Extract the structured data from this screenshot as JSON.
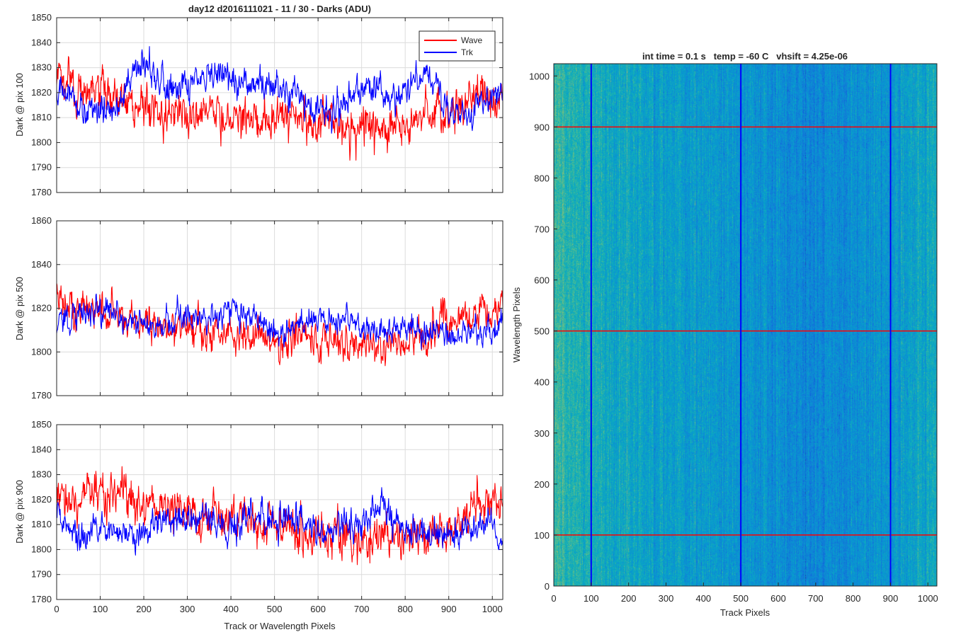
{
  "figure_title": "day12 d2016111021 - 11 / 30 - Darks (ADU)",
  "colors": {
    "wave": "#ff0000",
    "trk": "#0000ff",
    "grid": "#dcdcdc",
    "axis": "#262626"
  },
  "chart_data": [
    {
      "type": "line",
      "title": "day12 d2016111021 - 11 / 30 - Darks (ADU)",
      "xlabel": "",
      "ylabel": "Dark @ pix 100",
      "xlim": [
        0,
        1024
      ],
      "ylim": [
        1780,
        1850
      ],
      "xticks": [
        0,
        100,
        200,
        300,
        400,
        500,
        600,
        700,
        800,
        900,
        1000
      ],
      "xticks_labeled": false,
      "yticks": [
        1780,
        1790,
        1800,
        1810,
        1820,
        1830,
        1840,
        1850
      ],
      "grid": true,
      "legend": "top-right",
      "series": [
        {
          "name": "Wave",
          "color": "#ff0000",
          "x": [
            0,
            50,
            100,
            150,
            200,
            250,
            300,
            350,
            400,
            450,
            500,
            550,
            600,
            650,
            700,
            750,
            800,
            850,
            900,
            950,
            1000,
            1024
          ],
          "mean": [
            1825,
            1822,
            1819,
            1817,
            1815,
            1813,
            1812,
            1812,
            1811,
            1810,
            1810,
            1809,
            1808,
            1806,
            1806,
            1806,
            1808,
            1810,
            1812,
            1815,
            1818,
            1820
          ],
          "noise": 8
        },
        {
          "name": "Trk",
          "color": "#0000ff",
          "x": [
            0,
            50,
            100,
            150,
            200,
            250,
            300,
            350,
            400,
            450,
            500,
            550,
            600,
            650,
            700,
            750,
            800,
            850,
            900,
            950,
            1000,
            1024
          ],
          "mean": [
            1822,
            1815,
            1812,
            1818,
            1832,
            1822,
            1822,
            1826,
            1825,
            1824,
            1822,
            1818,
            1812,
            1815,
            1822,
            1818,
            1820,
            1828,
            1812,
            1812,
            1818,
            1820
          ],
          "noise": 6
        }
      ]
    },
    {
      "type": "line",
      "title": "",
      "xlabel": "",
      "ylabel": "Dark @ pix 500",
      "xlim": [
        0,
        1024
      ],
      "ylim": [
        1780,
        1860
      ],
      "xticks": [
        0,
        100,
        200,
        300,
        400,
        500,
        600,
        700,
        800,
        900,
        1000
      ],
      "xticks_labeled": false,
      "yticks": [
        1780,
        1800,
        1820,
        1840,
        1860
      ],
      "grid": true,
      "series": [
        {
          "name": "Wave",
          "color": "#ff0000",
          "x": [
            0,
            50,
            100,
            150,
            200,
            250,
            300,
            350,
            400,
            450,
            500,
            550,
            600,
            650,
            700,
            750,
            800,
            850,
            900,
            950,
            1000,
            1024
          ],
          "mean": [
            1822,
            1820,
            1820,
            1816,
            1812,
            1812,
            1812,
            1810,
            1810,
            1808,
            1806,
            1806,
            1805,
            1805,
            1804,
            1803,
            1804,
            1806,
            1816,
            1814,
            1818,
            1820
          ],
          "noise": 8
        },
        {
          "name": "Trk",
          "color": "#0000ff",
          "x": [
            0,
            50,
            100,
            150,
            200,
            250,
            300,
            350,
            400,
            450,
            500,
            550,
            600,
            650,
            700,
            750,
            800,
            850,
            900,
            950,
            1000,
            1024
          ],
          "mean": [
            1814,
            1818,
            1820,
            1816,
            1810,
            1812,
            1816,
            1816,
            1822,
            1818,
            1810,
            1812,
            1816,
            1814,
            1812,
            1810,
            1810,
            1810,
            1808,
            1806,
            1810,
            1814
          ],
          "noise": 6
        }
      ]
    },
    {
      "type": "line",
      "title": "",
      "xlabel": "Track or Wavelength Pixels",
      "ylabel": "Dark @ pix 900",
      "xlim": [
        0,
        1024
      ],
      "ylim": [
        1780,
        1850
      ],
      "xticks": [
        0,
        100,
        200,
        300,
        400,
        500,
        600,
        700,
        800,
        900,
        1000
      ],
      "xticks_labeled": true,
      "yticks": [
        1780,
        1790,
        1800,
        1810,
        1820,
        1830,
        1840,
        1850
      ],
      "grid": true,
      "series": [
        {
          "name": "Wave",
          "color": "#ff0000",
          "x": [
            0,
            50,
            100,
            150,
            200,
            250,
            300,
            350,
            400,
            450,
            500,
            550,
            600,
            650,
            700,
            750,
            800,
            850,
            900,
            950,
            1000,
            1024
          ],
          "mean": [
            1820,
            1822,
            1822,
            1822,
            1818,
            1816,
            1814,
            1812,
            1812,
            1810,
            1810,
            1806,
            1806,
            1805,
            1805,
            1805,
            1805,
            1806,
            1810,
            1816,
            1818,
            1816
          ],
          "noise": 8
        },
        {
          "name": "Trk",
          "color": "#0000ff",
          "x": [
            0,
            50,
            100,
            150,
            200,
            250,
            300,
            350,
            400,
            450,
            500,
            550,
            600,
            650,
            700,
            750,
            800,
            850,
            900,
            950,
            1000,
            1024
          ],
          "mean": [
            1814,
            1804,
            1808,
            1806,
            1808,
            1810,
            1812,
            1814,
            1808,
            1814,
            1812,
            1812,
            1806,
            1810,
            1812,
            1818,
            1808,
            1806,
            1806,
            1808,
            1810,
            1800
          ],
          "noise": 6
        }
      ]
    },
    {
      "type": "heatmap",
      "title": "int time = 0.1 s   temp = -60 C   vhsift = 4.25e-06",
      "xlabel": "Track Pixels",
      "ylabel": "Wavelength Pixels",
      "xlim": [
        0,
        1024
      ],
      "ylim": [
        0,
        1024
      ],
      "xticks": [
        0,
        100,
        200,
        300,
        400,
        500,
        600,
        700,
        800,
        900,
        1000
      ],
      "yticks": [
        0,
        100,
        200,
        300,
        400,
        500,
        600,
        700,
        800,
        900,
        1000
      ],
      "grid": false,
      "colormap": "parula",
      "value_range": [
        1800,
        1840
      ],
      "column_trend": {
        "x": [
          0,
          100,
          200,
          300,
          400,
          500,
          600,
          700,
          800,
          900,
          1000,
          1024
        ],
        "level": [
          0.62,
          0.55,
          0.5,
          0.47,
          0.45,
          0.42,
          0.38,
          0.34,
          0.38,
          0.44,
          0.5,
          0.52
        ]
      },
      "markers": {
        "vertical_lines": {
          "x": [
            100,
            500,
            900
          ],
          "color": "#0000ff"
        },
        "horizontal_lines": {
          "y": [
            100,
            500,
            900
          ],
          "color": "#ff0000"
        }
      }
    }
  ]
}
